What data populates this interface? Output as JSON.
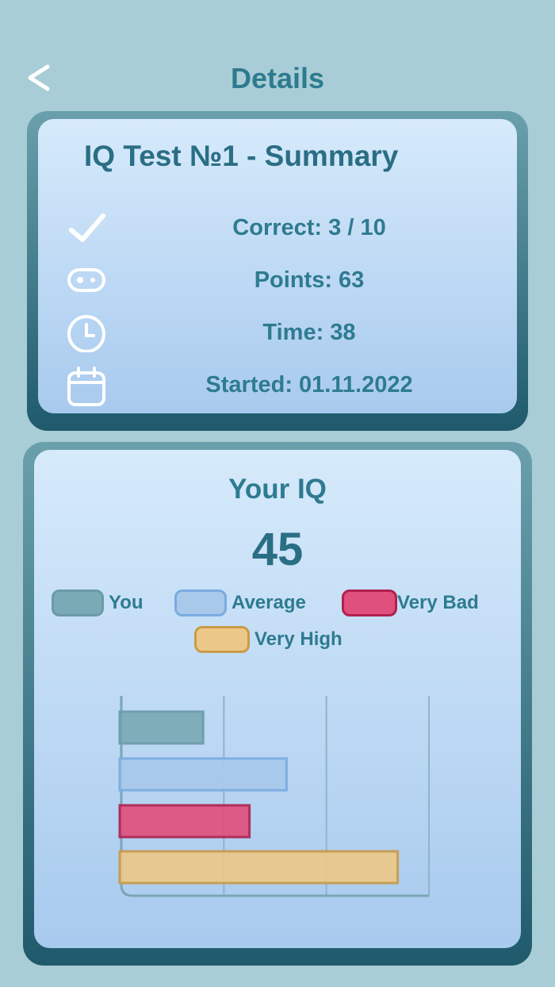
{
  "header": {
    "title": "Details",
    "back_icon": "chevron-left-icon"
  },
  "summary": {
    "title": "IQ Test №1 - Summary",
    "rows": [
      {
        "icon": "check-icon",
        "text": "Correct: 3 / 10"
      },
      {
        "icon": "points-icon",
        "text": "Points: 63"
      },
      {
        "icon": "clock-icon",
        "text": "Time: 38"
      },
      {
        "icon": "calendar-icon",
        "text": "Started: 01.11.2022"
      }
    ]
  },
  "iq": {
    "title": "Your IQ",
    "value": "45"
  },
  "chart_data": {
    "type": "bar",
    "orientation": "horizontal",
    "categories": [
      "You",
      "Average",
      "Very Bad",
      "Very High"
    ],
    "values": [
      45,
      90,
      70,
      150
    ],
    "colors": [
      "#7aaab6",
      "#a8c9ea",
      "#e0507c",
      "#ecc888"
    ],
    "border_colors": [
      "#6a9aa8",
      "#7aabe0",
      "#b0214f",
      "#c99a48"
    ],
    "xlim": [
      0,
      166
    ],
    "grid": true,
    "legend": "top"
  }
}
